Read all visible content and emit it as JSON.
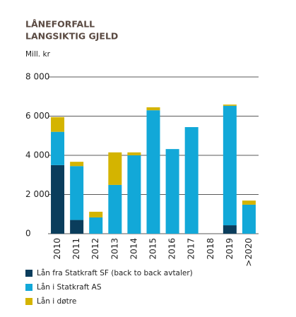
{
  "chart_data": {
    "type": "stacked_bar",
    "title": [
      "LÅNEFORFALL",
      "LANGSIKTIG GJELD"
    ],
    "y_label": "Mill. kr",
    "categories": [
      "2010",
      "2011",
      "2012",
      "2013",
      "2014",
      "2015",
      "2016",
      "2017",
      "2018",
      "2019",
      ">2020"
    ],
    "series": [
      {
        "name": "Lån fra Statkraft SF (back to back avtaler)",
        "color": "#0a3d5c",
        "values": [
          3500,
          700,
          0,
          0,
          0,
          0,
          0,
          0,
          0,
          430,
          0
        ]
      },
      {
        "name": "Lån i Statkraft AS",
        "color": "#12a8d8",
        "values": [
          1700,
          2750,
          830,
          2490,
          4000,
          6300,
          4320,
          5440,
          0,
          6100,
          1480
        ]
      },
      {
        "name": "Lån i døtre",
        "color": "#d4b400",
        "values": [
          750,
          220,
          290,
          1660,
          150,
          150,
          0,
          0,
          0,
          60,
          210
        ]
      }
    ],
    "ylim": [
      0,
      8000
    ],
    "yticks": [
      0,
      {
        "value": 2000,
        "label": "2 000"
      },
      {
        "value": 4000,
        "label": "4 000"
      },
      {
        "value": 6000,
        "label": "6 000"
      },
      {
        "value": 8000,
        "label": "8 000"
      }
    ],
    "grid": true
  }
}
